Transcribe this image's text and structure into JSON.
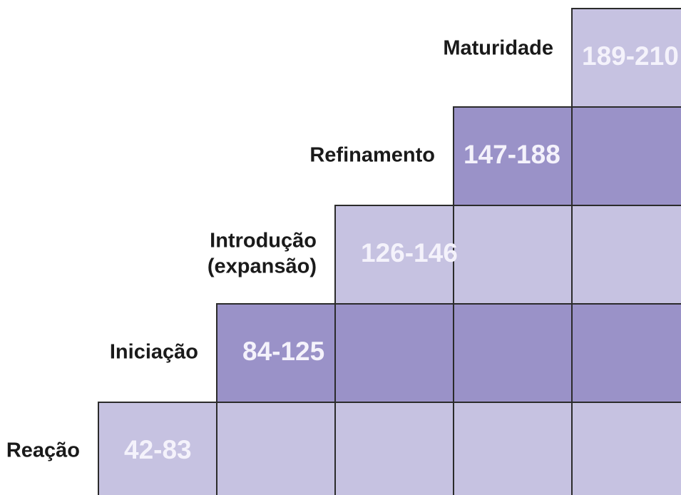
{
  "stages": [
    {
      "label": [
        "Reação"
      ],
      "range": "42-83"
    },
    {
      "label": [
        "Iniciação"
      ],
      "range": "84-125"
    },
    {
      "label": [
        "Introdução",
        "(expansão)"
      ],
      "range": "126-146"
    },
    {
      "label": [
        "Refinamento"
      ],
      "range": "147-188"
    },
    {
      "label": [
        "Maturidade"
      ],
      "range": "189-210"
    }
  ]
}
